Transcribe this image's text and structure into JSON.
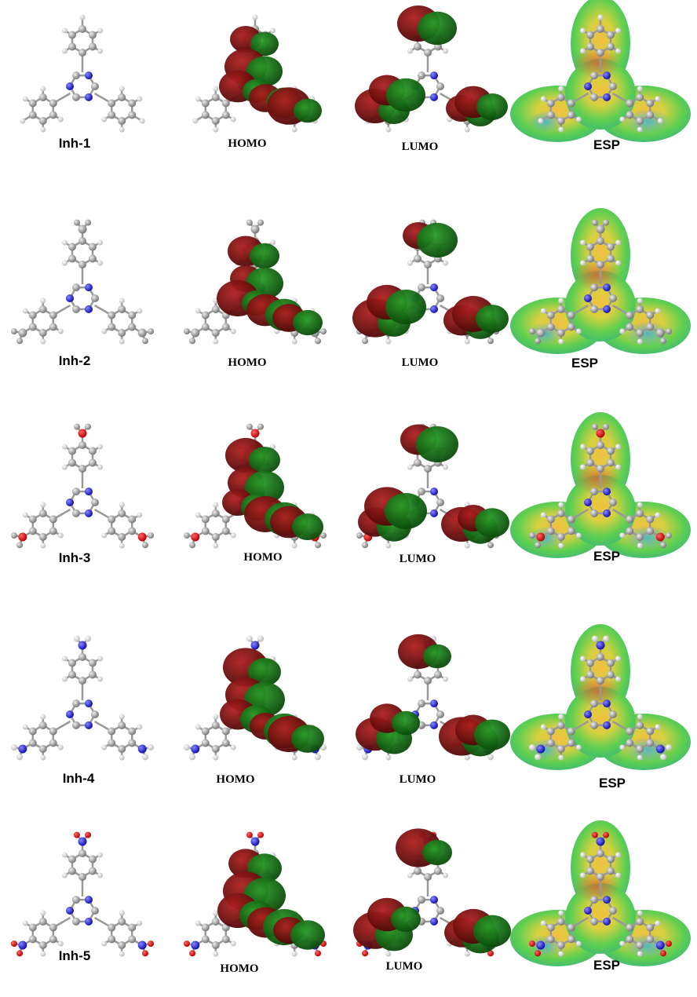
{
  "rows": [
    {
      "molecule": "Inh-1",
      "homo": "HOMO",
      "lumo": "LUMO",
      "esp": "ESP"
    },
    {
      "molecule": "Inh-2",
      "homo": "HOMO",
      "lumo": "LUMO",
      "esp": "ESP"
    },
    {
      "molecule": "Inh-3",
      "homo": "HOMO",
      "lumo": "LUMO",
      "esp": "ESP"
    },
    {
      "molecule": "Inh-4",
      "homo": "HOMO",
      "lumo": "LUMO",
      "esp": "ESP"
    },
    {
      "molecule": "Inh-5",
      "homo": "HOMO",
      "lumo": "LUMO",
      "esp": "ESP"
    }
  ]
}
